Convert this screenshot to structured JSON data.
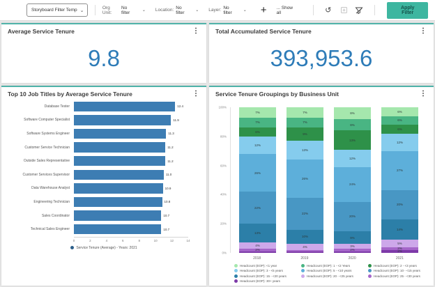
{
  "toolbar": {
    "storyboard_filter_value": "Storyboard Filter Temp",
    "org_unit_label": "Org Unit:",
    "location_label": "Location:",
    "layer_label": "Layer:",
    "org_unit_value": "No filter",
    "location_value": "No filter",
    "layer_value": "No filter",
    "show_all_label": "... Show all",
    "apply_filter_label": "Apply Filter",
    "accent_color": "#3db6a0"
  },
  "cards": {
    "avg_tenure": {
      "title": "Average Service Tenure",
      "value": "9.8"
    },
    "total_tenure": {
      "title": "Total Accumulated Service Tenure",
      "value": "393,953.6"
    },
    "value_color": "#2e7cb8",
    "top_border_color": "#4fb3a9"
  },
  "chart_data": [
    {
      "type": "bar",
      "orientation": "horizontal",
      "title": "Top 10 Job Titles by Average Service Tenure",
      "categories": [
        "Database Tester",
        "Software Computer Specialist",
        "Software Systems Engineer",
        "Customer Service Technician",
        "Outside Sales Representative",
        "Customer Services Supervisor",
        "Data Warehouse Analyst",
        "Engineering Technician",
        "Sales Coordinator",
        "Technical Sales Engineer"
      ],
      "values": [
        12.4,
        11.9,
        11.3,
        11.2,
        11.2,
        11.0,
        10.9,
        10.8,
        10.7,
        10.7
      ],
      "xlabel": "",
      "ylabel": "",
      "xlim": [
        0,
        14
      ],
      "x_ticks": [
        0,
        2,
        4,
        6,
        8,
        10,
        12,
        14
      ],
      "bar_color": "#3d7db3",
      "legend": "Service Tenure (Average) - Years: 2021",
      "legend_dot_color": "#2d5f8a",
      "legend_position": "bottom"
    },
    {
      "type": "bar",
      "stacked": true,
      "percent_stacked": true,
      "title": "Service Tenure Groupings by Business Unit",
      "categories": [
        "2018",
        "2019",
        "2020",
        "2021"
      ],
      "y_ticks": [
        "100%",
        "80%",
        "60%",
        "40%",
        "20%",
        "0%"
      ],
      "ylim": [
        0,
        100
      ],
      "series": [
        {
          "name": "Headcount (EOP): <1 year",
          "color": "#a5e7ad",
          "values": [
            7,
            7,
            8,
            6
          ]
        },
        {
          "name": "Headcount (EOP): 1 - <2 Years",
          "color": "#49b583",
          "values": [
            7,
            7,
            8,
            6
          ]
        },
        {
          "name": "Headcount (EOP): 2 - <3 years",
          "color": "#2e9149",
          "values": [
            6,
            9,
            13,
            6
          ]
        },
        {
          "name": "Headcount (EOP): 3 - <5 years",
          "color": "#85cced",
          "values": [
            12,
            13,
            12,
            12
          ]
        },
        {
          "name": "Headcount (EOP): 5 - <10 years",
          "color": "#5dafda",
          "values": [
            26,
            26,
            24,
            27
          ]
        },
        {
          "name": "Headcount (EOP): 10 - <15 years",
          "color": "#4897c4",
          "values": [
            22,
            22,
            20,
            20
          ]
        },
        {
          "name": "Headcount (EOP): 15 - <20 years",
          "color": "#2c7fa8",
          "values": [
            13,
            10,
            9,
            14
          ]
        },
        {
          "name": "Headcount (EOP): 20 - <25 years",
          "color": "#cda8ea",
          "values": [
            4,
            4,
            3,
            5
          ]
        },
        {
          "name": "Headcount (EOP): 25 - <30 years",
          "color": "#a566c9",
          "values": [
            2,
            1,
            2,
            2
          ]
        },
        {
          "name": "Headcount (EOP): 30+ years",
          "color": "#7d3aa8",
          "values": [
            1,
            1,
            1,
            2
          ]
        }
      ],
      "legend_position": "bottom"
    }
  ]
}
